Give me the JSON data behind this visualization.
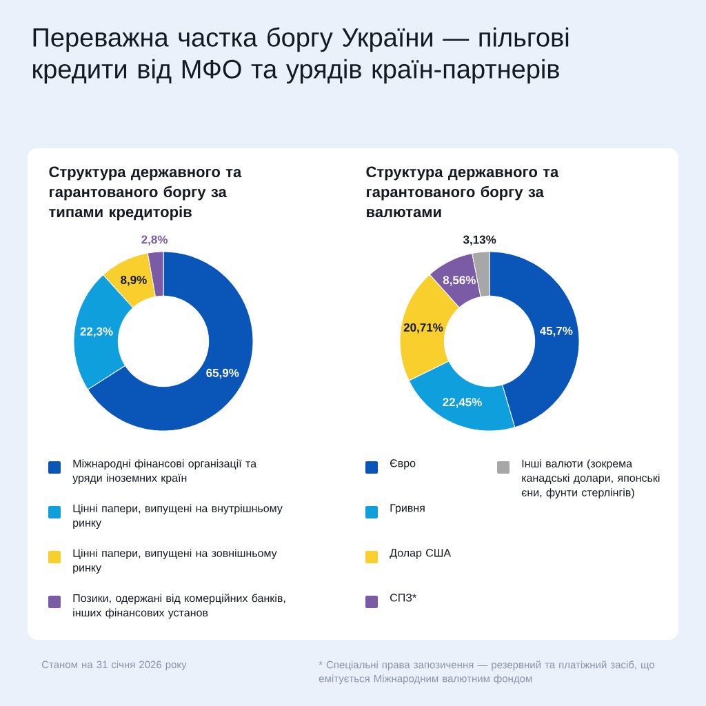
{
  "chart_data": [
    {
      "type": "donut",
      "title": "Переважна частка боргу України — пільгові кредити від МФО та урядів країн-партнерів",
      "subtitle": "Структура державного та гарантованого боргу за типами кредиторів",
      "categories": [
        "Міжнародні фінансові організації та уряди іноземних країн",
        "Цінні папери, випущені на внутрішньому ринку",
        "Цінні папери, випущені на зовнішньому ринку",
        "Позики, одержані від комерційних банків, інших фінансових установ"
      ],
      "values": [
        65.9,
        22.3,
        8.9,
        2.8
      ],
      "colors": [
        "#0a55b8",
        "#0f9fdc",
        "#f8cf2d",
        "#7b5ba6"
      ],
      "value_labels": [
        "65,9%",
        "22,3%",
        "8,9%",
        "2,8%"
      ],
      "legend": "bottom",
      "annotations": [
        "Станом на 31 січня 2026 року"
      ]
    },
    {
      "type": "donut",
      "title": "Структура державного та гарантованого боргу за валютами",
      "categories": [
        "Євро",
        "Гривня",
        "Долар США",
        "СПЗ*",
        "Інші валюти (зокрема канадські долари, японські єни, фунти стерлінгів)"
      ],
      "values": [
        45.7,
        22.45,
        20.71,
        8.56,
        3.13
      ],
      "colors": [
        "#0a55b8",
        "#0f9fdc",
        "#f8cf2d",
        "#7b5ba6",
        "#a7a7a7"
      ],
      "value_labels": [
        "45,7%",
        "22,45%",
        "20,71%",
        "8,56%",
        "3,13%"
      ],
      "legend": "bottom",
      "annotations": [
        "* Спеціальні права запозичення — резервний та платіжний засіб, що емітується Міжнародним валютним фондом"
      ]
    }
  ]
}
